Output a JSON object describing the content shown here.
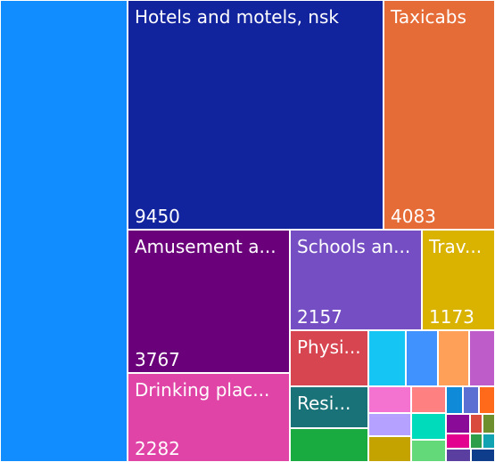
{
  "chart_data": {
    "type": "treemap",
    "nodes": [
      {
        "name": "",
        "value": null,
        "color": "#118dff"
      },
      {
        "name": "Hotels and motels, nsk",
        "value": 9450,
        "color": "#12239e"
      },
      {
        "name": "Taxicabs",
        "value": 4083,
        "color": "#e66c37"
      },
      {
        "name": "Amusement a...",
        "value": 3767,
        "color": "#6b007b"
      },
      {
        "name": "Schools an...",
        "value": 2157,
        "color": "#744ec2"
      },
      {
        "name": "Trav...",
        "value": 1173,
        "color": "#d9b300"
      },
      {
        "name": "Drinking plac...",
        "value": 2282,
        "color": "#e044a7"
      },
      {
        "name": "Physi...",
        "value": null,
        "color": "#d64550"
      },
      {
        "name": "Resi...",
        "value": null,
        "color": "#197278"
      },
      {
        "name": "",
        "value": null,
        "color": "#1aab40"
      },
      {
        "name": "",
        "value": null,
        "color": "#15c6f4"
      },
      {
        "name": "",
        "value": null,
        "color": "#4092ff"
      },
      {
        "name": "",
        "value": null,
        "color": "#ffa058"
      },
      {
        "name": "",
        "value": null,
        "color": "#be5dc9"
      },
      {
        "name": "",
        "value": null,
        "color": "#f472d0"
      },
      {
        "name": "",
        "value": null,
        "color": "#ff8080"
      },
      {
        "name": "",
        "value": null,
        "color": "#b5a1ff"
      },
      {
        "name": "",
        "value": null,
        "color": "#00dbbc"
      },
      {
        "name": "",
        "value": null,
        "color": "#c4a200"
      },
      {
        "name": "",
        "value": null,
        "color": "#64d97a"
      },
      {
        "name": "",
        "value": null,
        "color": "#0f8ad8"
      },
      {
        "name": "",
        "value": null,
        "color": "#5a6fd1"
      },
      {
        "name": "",
        "value": null,
        "color": "#fe6a1a"
      },
      {
        "name": "",
        "value": null,
        "color": "#8a0b97"
      },
      {
        "name": "",
        "value": null,
        "color": "#d94b3c"
      },
      {
        "name": "",
        "value": null,
        "color": "#6e8f2e"
      },
      {
        "name": "",
        "value": null,
        "color": "#e4008f"
      },
      {
        "name": "",
        "value": null,
        "color": "#2e9e4a"
      },
      {
        "name": "",
        "value": null,
        "color": "#12a3b3"
      },
      {
        "name": "",
        "value": null,
        "color": "#5a3fa0"
      },
      {
        "name": "",
        "value": null,
        "color": "#0e3d8c"
      }
    ]
  }
}
